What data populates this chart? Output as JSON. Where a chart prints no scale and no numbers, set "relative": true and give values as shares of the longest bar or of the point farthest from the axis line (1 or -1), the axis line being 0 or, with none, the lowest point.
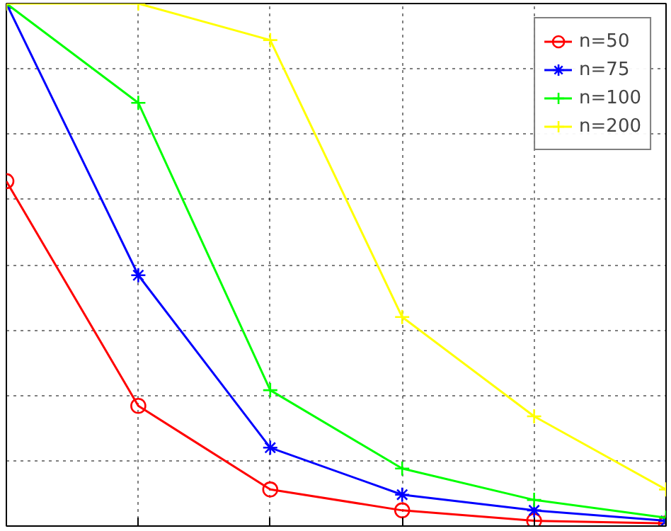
{
  "chart_data": {
    "type": "line",
    "relative": true,
    "categories": [
      null,
      null,
      null,
      null,
      null,
      null
    ],
    "grid": true,
    "legend": "top right",
    "series": [
      {
        "name": "n=50",
        "color": "#ff0000",
        "marker": "circle",
        "values": [
          0.66,
          0.23,
          0.07,
          0.03,
          0.01,
          0.005
        ]
      },
      {
        "name": "n=75",
        "color": "#0000ff",
        "marker": "cross",
        "values": [
          1.0,
          0.48,
          0.15,
          0.06,
          0.03,
          0.01
        ]
      },
      {
        "name": "n=100",
        "color": "#00ff00",
        "marker": "cross",
        "values": [
          1.0,
          0.81,
          0.26,
          0.11,
          0.05,
          0.016
        ]
      },
      {
        "name": "n=200",
        "color": "#ffff00",
        "marker": "cross",
        "values": [
          1.0,
          1.0,
          0.93,
          0.4,
          0.21,
          0.07
        ]
      }
    ]
  }
}
